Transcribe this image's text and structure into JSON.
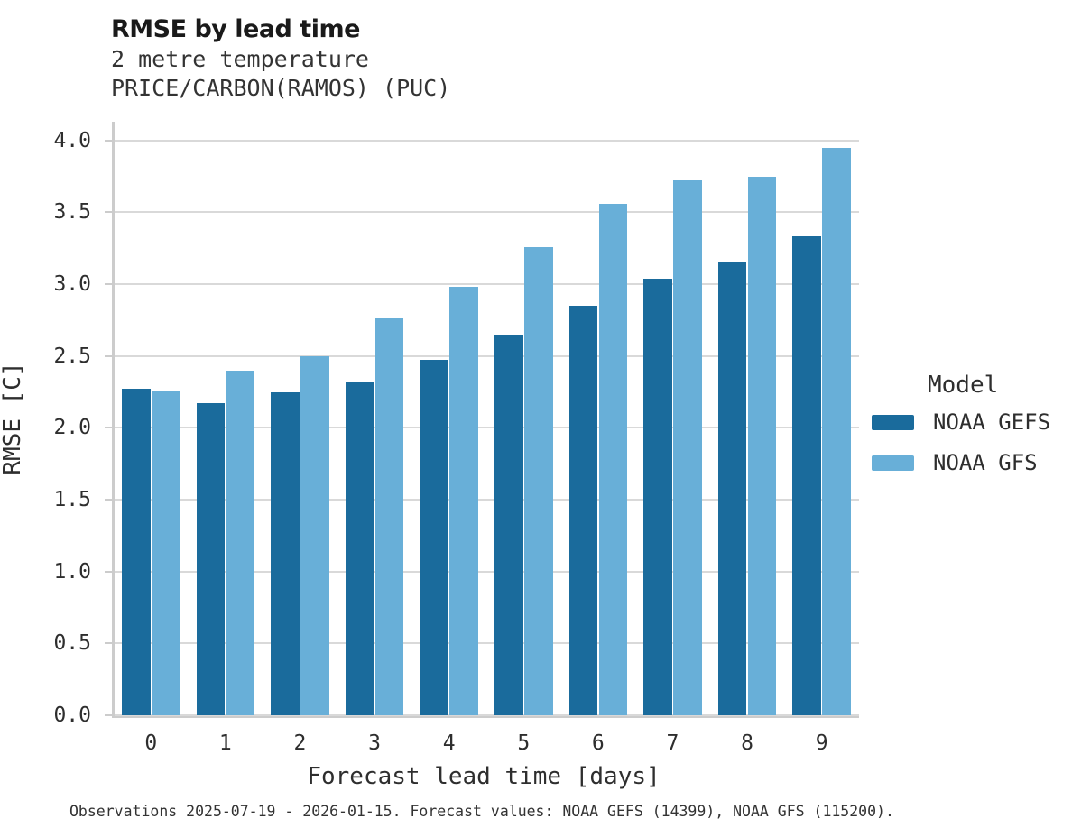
{
  "header": {
    "title": "RMSE by lead time",
    "subtitle1": "2 metre temperature",
    "subtitle2": "PRICE/CARBON(RAMOS) (PUC)"
  },
  "chart_data": {
    "type": "bar",
    "title": "RMSE by lead time",
    "subtitle": [
      "2 metre temperature",
      "PRICE/CARBON(RAMOS) (PUC)"
    ],
    "xlabel": "Forecast lead time [days]",
    "ylabel": "RMSE [C]",
    "categories": [
      "0",
      "1",
      "2",
      "3",
      "4",
      "5",
      "6",
      "7",
      "8",
      "9"
    ],
    "series": [
      {
        "name": "NOAA GEFS",
        "color": "#1a6b9c",
        "values": [
          2.27,
          2.17,
          2.25,
          2.32,
          2.47,
          2.65,
          2.85,
          3.04,
          3.15,
          3.33
        ]
      },
      {
        "name": "NOAA GFS",
        "color": "#68afd8",
        "values": [
          2.26,
          2.4,
          2.5,
          2.76,
          2.98,
          3.26,
          3.56,
          3.72,
          3.75,
          3.95
        ]
      }
    ],
    "ylim": [
      0,
      4.13
    ],
    "yticks": [
      0.0,
      0.5,
      1.0,
      1.5,
      2.0,
      2.5,
      3.0,
      3.5,
      4.0
    ],
    "grid": "horizontal",
    "gridline_color": "#d9d9d9",
    "spine_color": "#cccccc",
    "legend_title": "Model",
    "legend_position": "center-right"
  },
  "legend": {
    "title": "Model"
  },
  "caption": "Observations 2025-07-19 - 2026-01-15. Forecast values: NOAA GEFS (14399), NOAA GFS (115200)."
}
